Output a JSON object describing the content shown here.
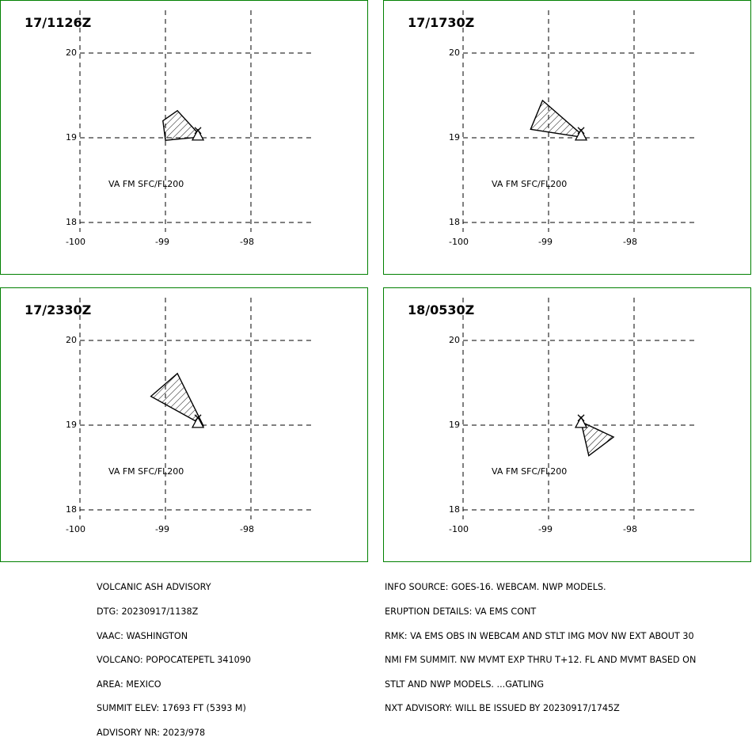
{
  "panels": [
    {
      "title": "17/1126Z",
      "layer_label": "VA FM SFC/FL200",
      "polygon": [
        [
          -99.0,
          18.97
        ],
        [
          -99.03,
          19.2
        ],
        [
          -98.86,
          19.32
        ],
        [
          -98.58,
          19.01
        ]
      ]
    },
    {
      "title": "17/1730Z",
      "layer_label": "VA FM SFC/FL200",
      "polygon": [
        [
          -99.21,
          19.1
        ],
        [
          -99.07,
          19.44
        ],
        [
          -98.57,
          19.0
        ]
      ]
    },
    {
      "title": "17/2330Z",
      "layer_label": "VA FM SFC/FL200",
      "polygon": [
        [
          -99.17,
          19.34
        ],
        [
          -98.86,
          19.61
        ],
        [
          -98.56,
          19.0
        ]
      ]
    },
    {
      "title": "18/0530Z",
      "layer_label": "VA FM SFC/FL200",
      "polygon": [
        [
          -98.62,
          19.04
        ],
        [
          -98.53,
          18.64
        ],
        [
          -98.24,
          18.86
        ]
      ]
    }
  ],
  "map_grid": {
    "lon_ticks": [
      "-100",
      "-99",
      "-98"
    ],
    "lat_ticks": [
      "20",
      "19",
      "18"
    ],
    "lon_range": [
      -100,
      -98
    ],
    "lat_range": [
      18,
      20
    ],
    "volcano": {
      "lon": -98.62,
      "lat": 19.02,
      "symbol": "volcano-triangle-icon"
    }
  },
  "advisory_left": [
    "VOLCANIC ASH ADVISORY",
    "DTG: 20230917/1138Z",
    "VAAC: WASHINGTON",
    "VOLCANO: POPOCATEPETL 341090",
    "AREA: MEXICO",
    "SUMMIT ELEV: 17693 FT (5393 M)",
    "ADVISORY NR: 2023/978"
  ],
  "advisory_right": [
    "INFO SOURCE: GOES-16. WEBCAM. NWP MODELS.",
    "ERUPTION DETAILS: VA EMS CONT",
    "RMK: VA EMS OBS IN WEBCAM AND STLT IMG MOV NW EXT ABOUT 30",
    "NMI FM SUMMIT. NW MVMT EXP THRU T+12. FL AND MVMT BASED ON",
    "STLT AND NWP MODELS. ...GATLING",
    "NXT ADVISORY: WILL BE ISSUED BY 20230917/1745Z"
  ],
  "colors": {
    "panel_border": "#008000",
    "ink": "#000000"
  }
}
